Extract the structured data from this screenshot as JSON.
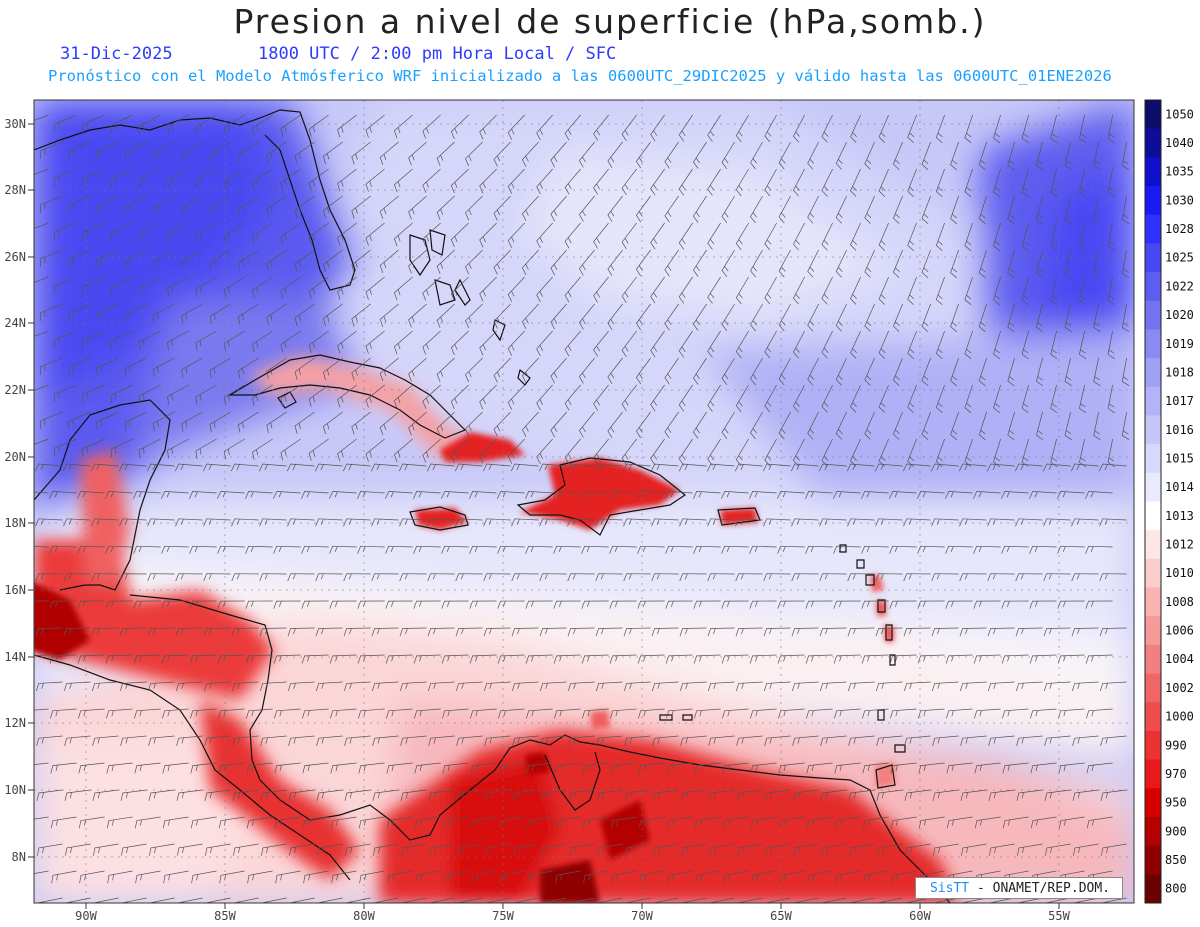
{
  "title": "Presion a nivel de superficie (hPa,somb.)",
  "date_label": "31-Dic-2025",
  "time_label": "1800 UTC / 2:00 pm Hora Local / SFC",
  "forecast_note": "Pronóstico con el Modelo Atmósferico WRF inicializado a las 0600UTC_29DIC2025 y válido hasta las  0600UTC_01ENE2026",
  "credit": {
    "brand": "SisTT",
    "text": "- ONAMET/REP.DOM."
  },
  "lat_labels": [
    "30N",
    "28N",
    "26N",
    "24N",
    "22N",
    "20N",
    "18N",
    "16N",
    "14N",
    "12N",
    "10N",
    "8N"
  ],
  "lon_labels": [
    "90W",
    "85W",
    "80W",
    "75W",
    "70W",
    "65W",
    "60W",
    "55W"
  ],
  "colorbar": {
    "levels": [
      "1050",
      "1040",
      "1035",
      "1030",
      "1028",
      "1025",
      "1022",
      "1020",
      "1019",
      "1018",
      "1017",
      "1016",
      "1015",
      "1014",
      "1013",
      "1012",
      "1010",
      "1008",
      "1006",
      "1004",
      "1002",
      "1000",
      "990",
      "970",
      "950",
      "900",
      "850",
      "800"
    ],
    "colors": [
      "#0c0c6b",
      "#0d0d9a",
      "#1010cc",
      "#1a1af5",
      "#3030ff",
      "#4848f5",
      "#5d5df0",
      "#7373f0",
      "#8a8af2",
      "#a0a0f5",
      "#b3b3f7",
      "#c6c6f9",
      "#d8d8fb",
      "#eaeafd",
      "#ffffff",
      "#fde6e6",
      "#fbcccc",
      "#f9b3b3",
      "#f59999",
      "#f38080",
      "#f06666",
      "#ee4d4d",
      "#eb3333",
      "#e61a1a",
      "#d70000",
      "#b30000",
      "#900000",
      "#6a0000"
    ]
  }
}
